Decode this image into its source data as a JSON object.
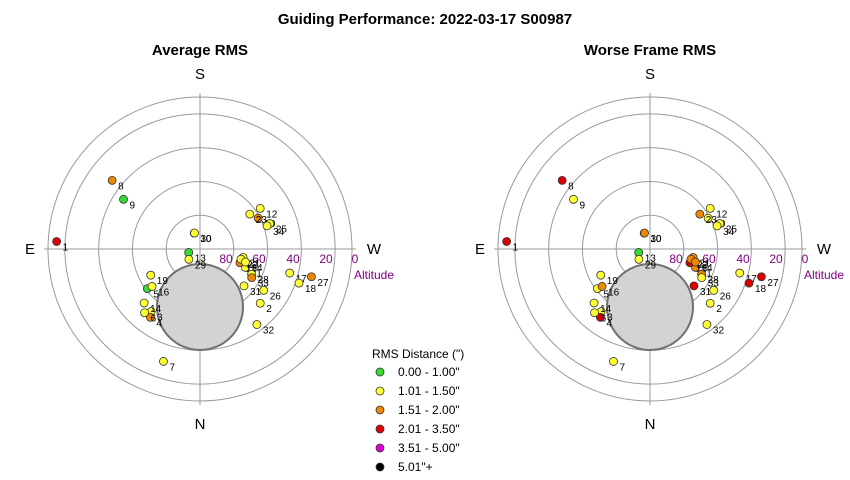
{
  "title": "Guiding Performance: 2022-03-17 S00987",
  "legend": {
    "title": "RMS Distance (\")",
    "entries": [
      {
        "label": "0.00 - 1.00\"",
        "color": "#33dd33"
      },
      {
        "label": "1.01 - 1.50\"",
        "color": "#ffff33"
      },
      {
        "label": "1.51 - 2.00\"",
        "color": "#ee8800"
      },
      {
        "label": "2.01 - 3.50\"",
        "color": "#dd0000"
      },
      {
        "label": "3.51 - 5.00\"",
        "color": "#dd00dd"
      },
      {
        "label": "5.01\"+",
        "color": "#000000"
      }
    ]
  },
  "chart_data": [
    {
      "type": "scatter",
      "subtype": "polar",
      "title": "Average RMS",
      "directions": {
        "top": "S",
        "bottom": "N",
        "left": "E",
        "right": "W"
      },
      "altitude_label": "Altitude",
      "altitude_ticks": [
        80,
        60,
        40,
        20,
        0
      ],
      "points": [
        {
          "id": "1",
          "az": 273,
          "alt": 5,
          "class": 3
        },
        {
          "id": "2",
          "az": 132,
          "alt": 42,
          "class": 1
        },
        {
          "id": "3",
          "az": 218,
          "alt": 43,
          "class": 1
        },
        {
          "id": "4",
          "az": 216,
          "alt": 40,
          "class": 2
        },
        {
          "id": "5",
          "az": 233,
          "alt": 51,
          "class": 0
        },
        {
          "id": "6",
          "az": 221,
          "alt": 40,
          "class": 1
        },
        {
          "id": "7",
          "az": 198,
          "alt": 20,
          "class": 1
        },
        {
          "id": "8",
          "az": 308,
          "alt": 24,
          "class": 2
        },
        {
          "id": "9",
          "az": 303,
          "alt": 36,
          "class": 0
        },
        {
          "id": "10",
          "az": 340,
          "alt": 80,
          "class": 2
        },
        {
          "id": "11",
          "az": 112,
          "alt": 61,
          "class": 1
        },
        {
          "id": "12",
          "az": 56,
          "alt": 47,
          "class": 1
        },
        {
          "id": "13",
          "az": 253,
          "alt": 83,
          "class": 0
        },
        {
          "id": "14",
          "az": 226,
          "alt": 44,
          "class": 1
        },
        {
          "id": "15",
          "az": 109,
          "alt": 65,
          "class": 2
        },
        {
          "id": "16",
          "az": 232,
          "alt": 54,
          "class": 1
        },
        {
          "id": "17",
          "az": 105,
          "alt": 35,
          "class": 1
        },
        {
          "id": "18",
          "az": 109,
          "alt": 28,
          "class": 1
        },
        {
          "id": "19",
          "az": 242,
          "alt": 57,
          "class": 1
        },
        {
          "id": "20",
          "az": 62,
          "alt": 51,
          "class": 2
        },
        {
          "id": "21",
          "az": 101,
          "alt": 64,
          "class": 1
        },
        {
          "id": "22",
          "az": 104,
          "alt": 65,
          "class": 1
        },
        {
          "id": "23",
          "az": 55,
          "alt": 54,
          "class": 1
        },
        {
          "id": "24",
          "az": 106,
          "alt": 62,
          "class": 1
        },
        {
          "id": "25",
          "az": 70,
          "alt": 46,
          "class": 1
        },
        {
          "id": "26",
          "az": 123,
          "alt": 45,
          "class": 1
        },
        {
          "id": "27",
          "az": 104,
          "alt": 22,
          "class": 2
        },
        {
          "id": "28",
          "az": 116,
          "alt": 56,
          "class": 1
        },
        {
          "id": "29",
          "az": 227,
          "alt": 81,
          "class": 1
        },
        {
          "id": "30",
          "az": 341,
          "alt": 80,
          "class": 1
        },
        {
          "id": "31",
          "az": 130,
          "alt": 56,
          "class": 1
        },
        {
          "id": "32",
          "az": 143,
          "alt": 34,
          "class": 1
        },
        {
          "id": "33",
          "az": 119,
          "alt": 55,
          "class": 2
        },
        {
          "id": "34",
          "az": 71,
          "alt": 48,
          "class": 1
        }
      ]
    },
    {
      "type": "scatter",
      "subtype": "polar",
      "title": "Worse Frame RMS",
      "directions": {
        "top": "S",
        "bottom": "N",
        "left": "E",
        "right": "W"
      },
      "altitude_label": "Altitude",
      "altitude_ticks": [
        80,
        60,
        40,
        20,
        0
      ],
      "points": [
        {
          "id": "1",
          "az": 273,
          "alt": 5,
          "class": 3
        },
        {
          "id": "2",
          "az": 132,
          "alt": 42,
          "class": 1
        },
        {
          "id": "3",
          "az": 218,
          "alt": 43,
          "class": 1
        },
        {
          "id": "4",
          "az": 216,
          "alt": 40,
          "class": 3
        },
        {
          "id": "5",
          "az": 233,
          "alt": 51,
          "class": 1
        },
        {
          "id": "6",
          "az": 221,
          "alt": 40,
          "class": 1
        },
        {
          "id": "7",
          "az": 198,
          "alt": 20,
          "class": 1
        },
        {
          "id": "8",
          "az": 308,
          "alt": 24,
          "class": 3
        },
        {
          "id": "9",
          "az": 303,
          "alt": 36,
          "class": 1
        },
        {
          "id": "10",
          "az": 340,
          "alt": 80,
          "class": 3
        },
        {
          "id": "11",
          "az": 112,
          "alt": 61,
          "class": 2
        },
        {
          "id": "12",
          "az": 56,
          "alt": 47,
          "class": 1
        },
        {
          "id": "13",
          "az": 253,
          "alt": 83,
          "class": 0
        },
        {
          "id": "14",
          "az": 226,
          "alt": 44,
          "class": 1
        },
        {
          "id": "15",
          "az": 109,
          "alt": 65,
          "class": 3
        },
        {
          "id": "16",
          "az": 232,
          "alt": 54,
          "class": 2
        },
        {
          "id": "17",
          "az": 105,
          "alt": 35,
          "class": 1
        },
        {
          "id": "18",
          "az": 109,
          "alt": 28,
          "class": 3
        },
        {
          "id": "19",
          "az": 242,
          "alt": 57,
          "class": 1
        },
        {
          "id": "20",
          "az": 62,
          "alt": 51,
          "class": 1
        },
        {
          "id": "21",
          "az": 101,
          "alt": 64,
          "class": 2
        },
        {
          "id": "22",
          "az": 104,
          "alt": 65,
          "class": 2
        },
        {
          "id": "23",
          "az": 55,
          "alt": 54,
          "class": 2
        },
        {
          "id": "24",
          "az": 106,
          "alt": 62,
          "class": 2
        },
        {
          "id": "25",
          "az": 70,
          "alt": 46,
          "class": 1
        },
        {
          "id": "26",
          "az": 123,
          "alt": 45,
          "class": 1
        },
        {
          "id": "27",
          "az": 104,
          "alt": 22,
          "class": 3
        },
        {
          "id": "28",
          "az": 116,
          "alt": 56,
          "class": 2
        },
        {
          "id": "29",
          "az": 227,
          "alt": 81,
          "class": 1
        },
        {
          "id": "30",
          "az": 341,
          "alt": 80,
          "class": 2
        },
        {
          "id": "31",
          "az": 130,
          "alt": 56,
          "class": 3
        },
        {
          "id": "32",
          "az": 143,
          "alt": 34,
          "class": 1
        },
        {
          "id": "33",
          "az": 119,
          "alt": 55,
          "class": 1
        },
        {
          "id": "34",
          "az": 71,
          "alt": 48,
          "class": 1
        }
      ]
    }
  ]
}
